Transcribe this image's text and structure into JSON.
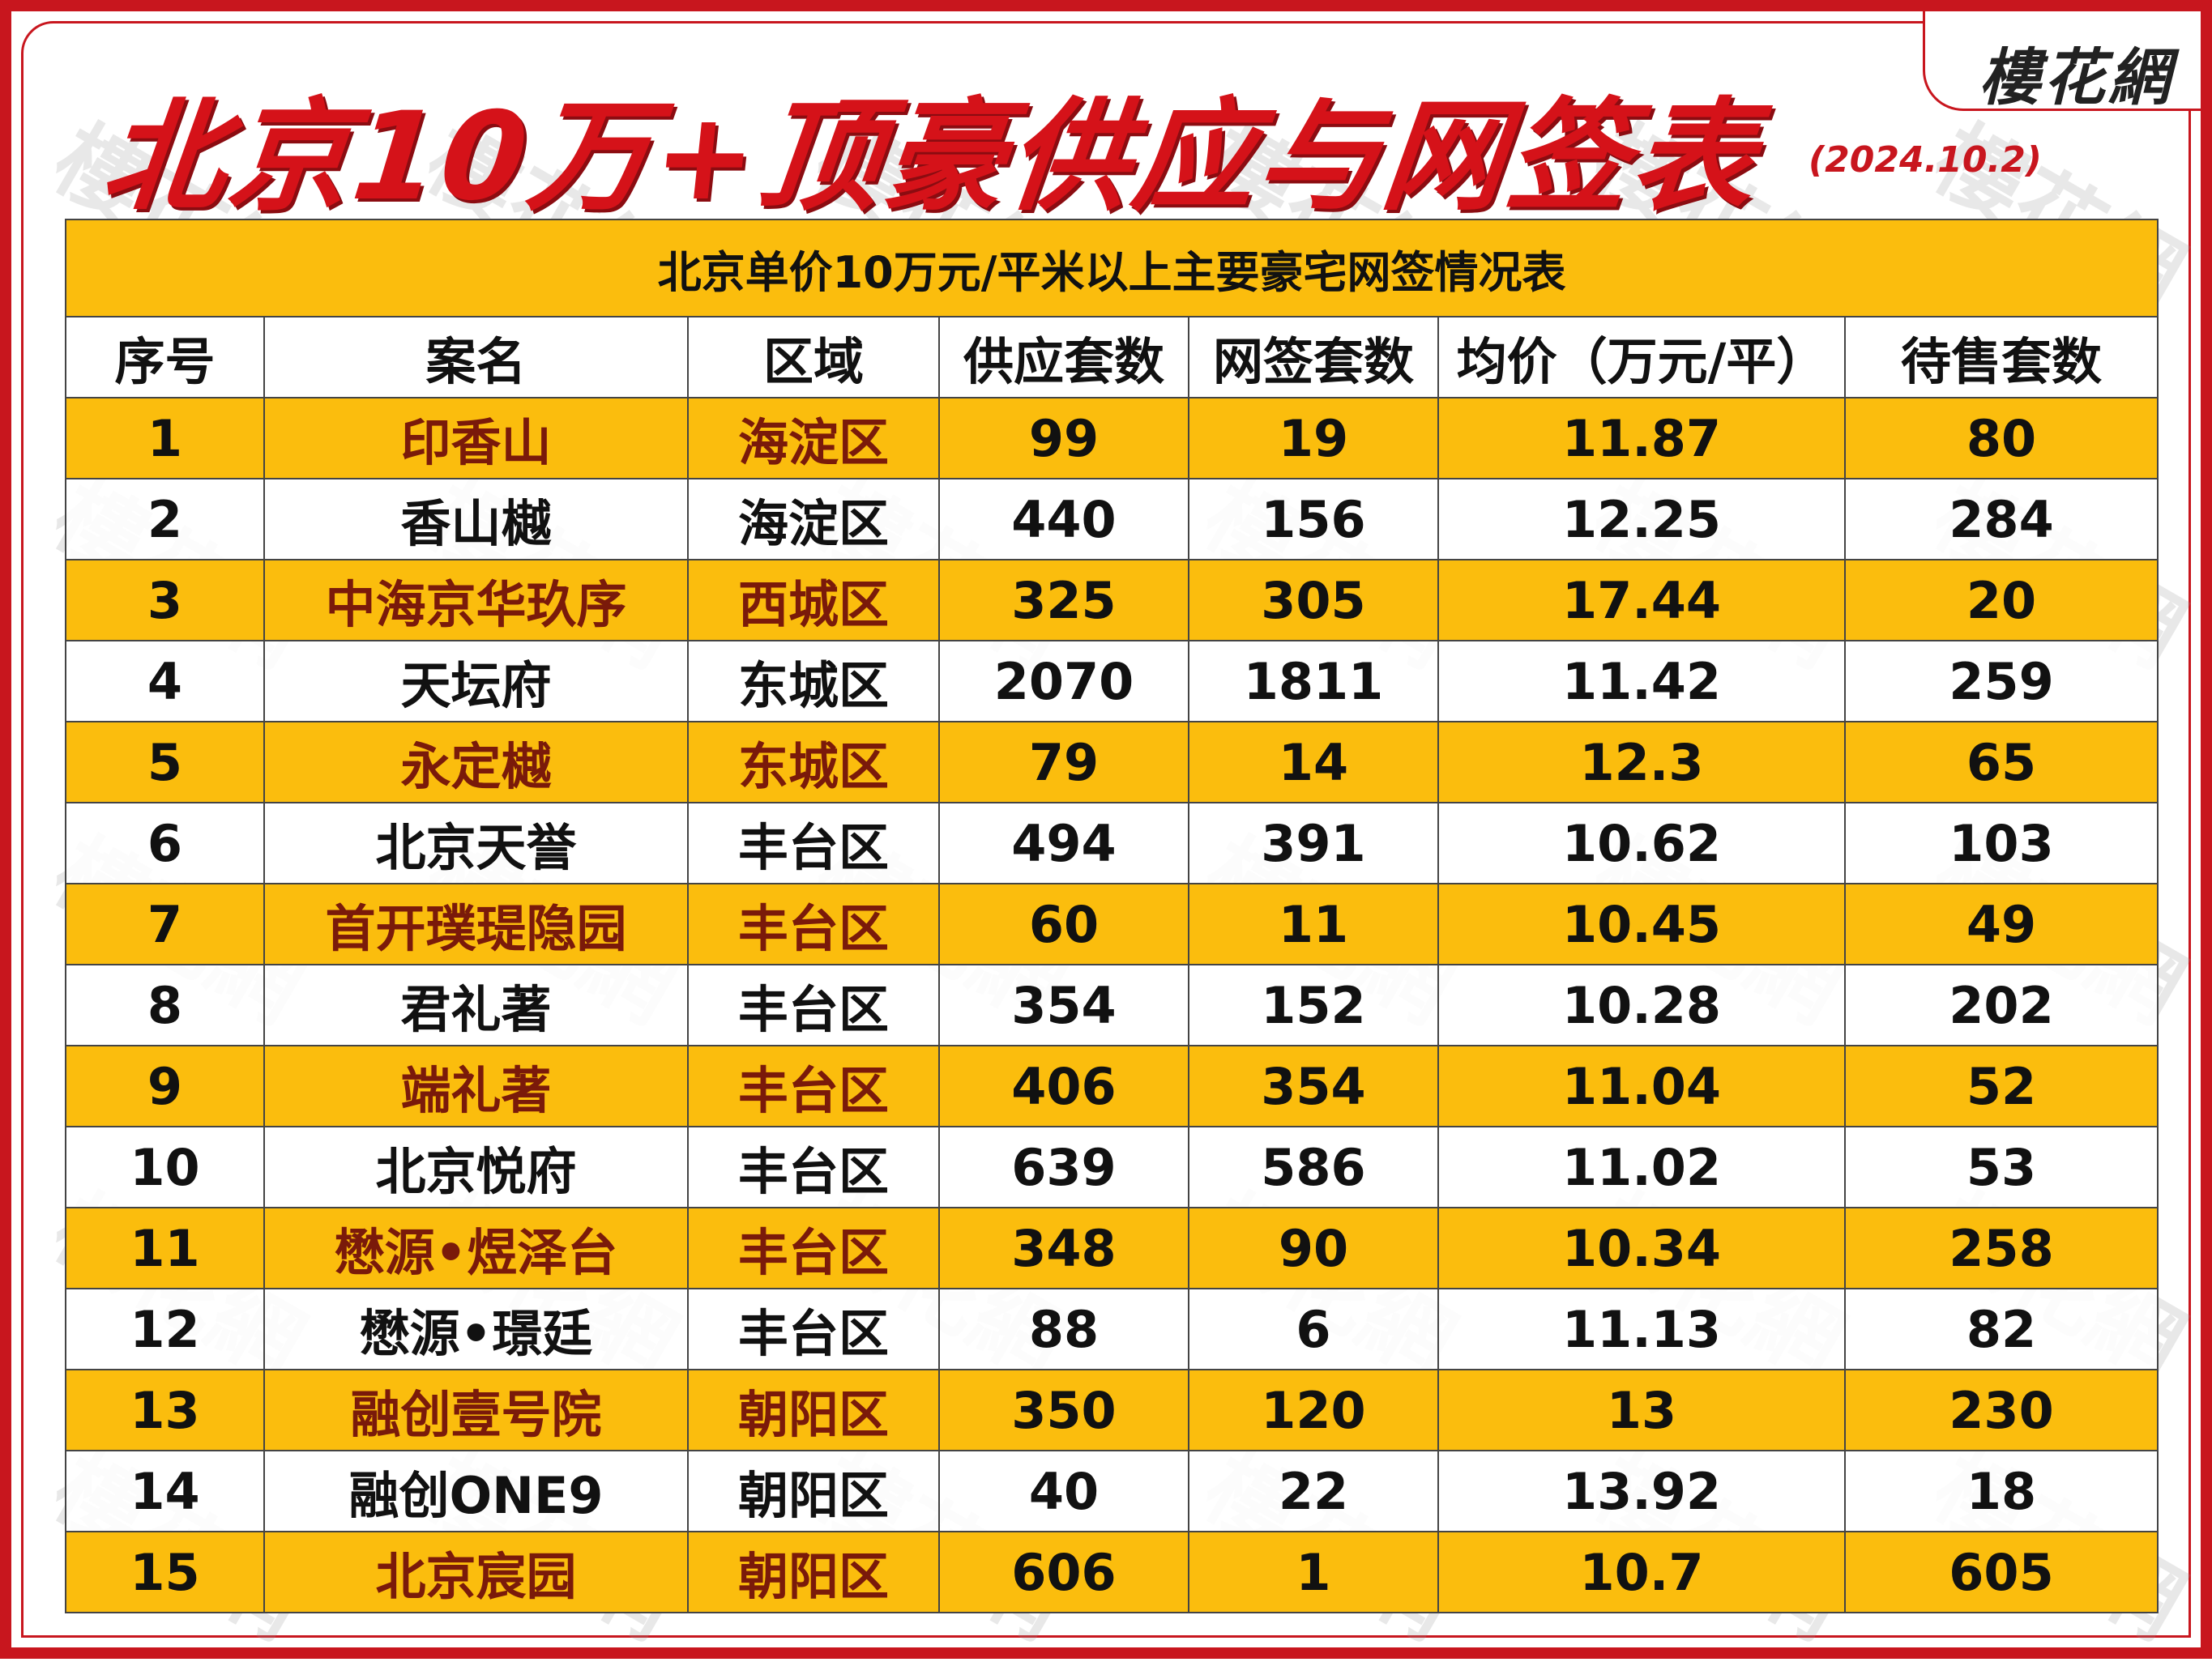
{
  "brand": {
    "logo_text": "樓花網"
  },
  "header": {
    "title": "北京10万+顶豪供应与网签表",
    "date": "(2024.10.2)"
  },
  "watermark_text": "樓花網",
  "table": {
    "caption": "北京单价10万元/平米以上主要豪宅网签情况表",
    "columns": [
      "序号",
      "案名",
      "区域",
      "供应套数",
      "网签套数",
      "均价（万元/平）",
      "待售套数"
    ],
    "rows": [
      [
        "1",
        "印香山",
        "海淀区",
        "99",
        "19",
        "11.87",
        "80"
      ],
      [
        "2",
        "香山樾",
        "海淀区",
        "440",
        "156",
        "12.25",
        "284"
      ],
      [
        "3",
        "中海京华玖序",
        "西城区",
        "325",
        "305",
        "17.44",
        "20"
      ],
      [
        "4",
        "天坛府",
        "东城区",
        "2070",
        "1811",
        "11.42",
        "259"
      ],
      [
        "5",
        "永定樾",
        "东城区",
        "79",
        "14",
        "12.3",
        "65"
      ],
      [
        "6",
        "北京天誉",
        "丰台区",
        "494",
        "391",
        "10.62",
        "103"
      ],
      [
        "7",
        "首开璞瑅隐园",
        "丰台区",
        "60",
        "11",
        "10.45",
        "49"
      ],
      [
        "8",
        "君礼著",
        "丰台区",
        "354",
        "152",
        "10.28",
        "202"
      ],
      [
        "9",
        "端礼著",
        "丰台区",
        "406",
        "354",
        "11.04",
        "52"
      ],
      [
        "10",
        "北京悦府",
        "丰台区",
        "639",
        "586",
        "11.02",
        "53"
      ],
      [
        "11",
        "懋源•煜泽台",
        "丰台区",
        "348",
        "90",
        "10.34",
        "258"
      ],
      [
        "12",
        "懋源•璟廷",
        "丰台区",
        "88",
        "6",
        "11.13",
        "82"
      ],
      [
        "13",
        "融创壹号院",
        "朝阳区",
        "350",
        "120",
        "13",
        "230"
      ],
      [
        "14",
        "融创ONE9",
        "朝阳区",
        "40",
        "22",
        "13.92",
        "18"
      ],
      [
        "15",
        "北京宸园",
        "朝阳区",
        "606",
        "1",
        "10.7",
        "605"
      ]
    ]
  },
  "colors": {
    "accent_red": "#c8161e",
    "row_highlight": "#fbbd0d"
  }
}
